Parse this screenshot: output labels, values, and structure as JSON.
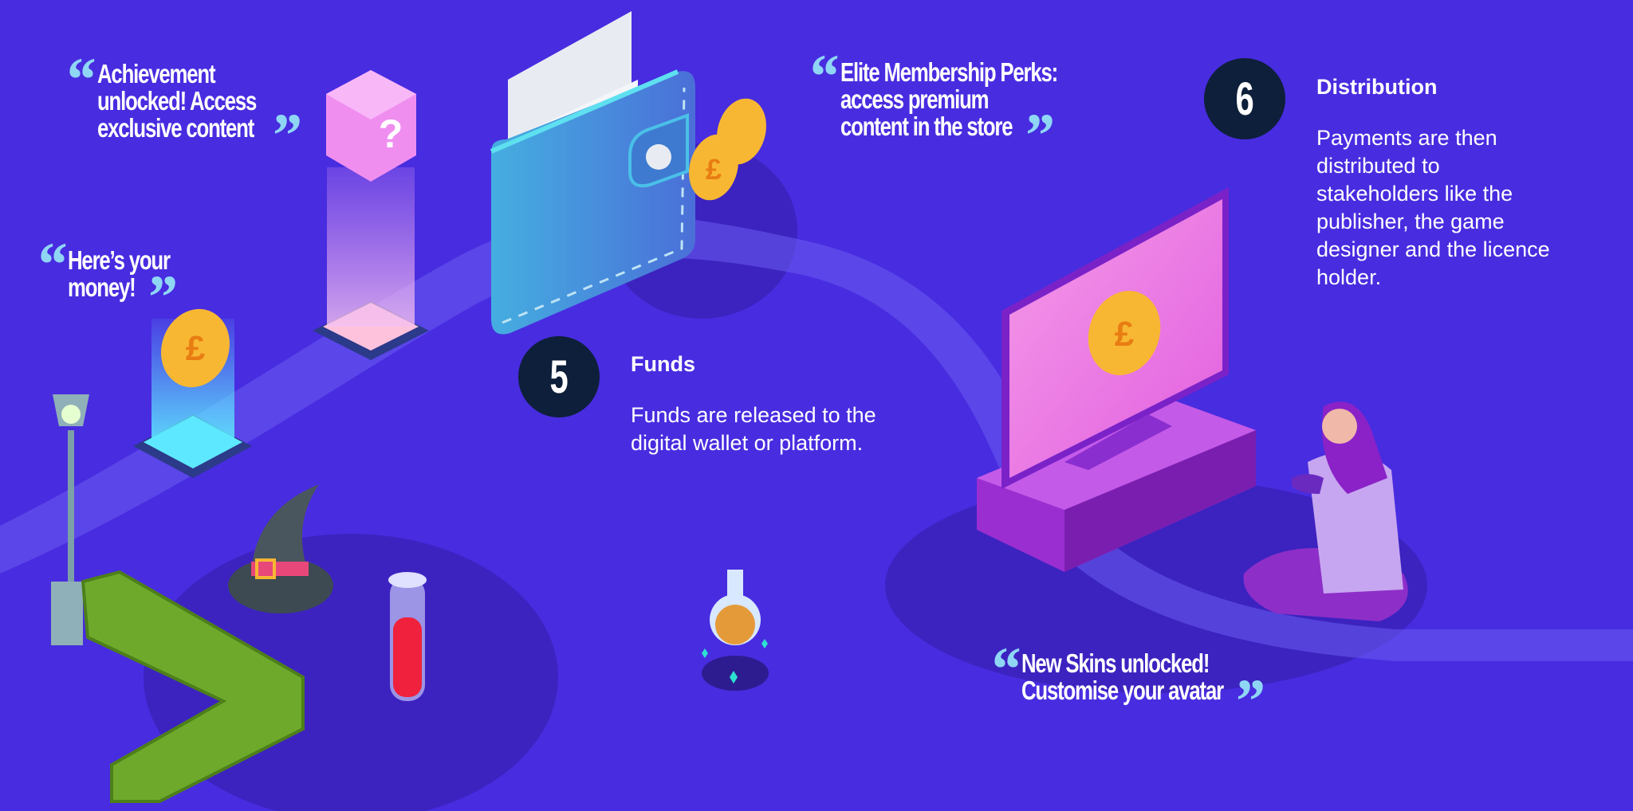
{
  "colors": {
    "background": "#482ce0",
    "step_circle": "#0d1f3a",
    "quote_mark": "#8fd6f5",
    "coin": "#f7b733",
    "tv_screen": "#f07ae8"
  },
  "quotes": [
    {
      "text_lines": [
        "Achievement",
        "unlocked! Access",
        "exclusive content"
      ]
    },
    {
      "text_lines": [
        "Here’s your",
        "money!"
      ]
    },
    {
      "text_lines": [
        "Elite Membership Perks:",
        "access premium",
        "content in the store"
      ]
    },
    {
      "text_lines": [
        "New Skins unlocked!",
        "Customise your avatar"
      ]
    }
  ],
  "steps": [
    {
      "number": "5",
      "title": "Funds",
      "body": "Funds are released to the\ndigital wallet or platform."
    },
    {
      "number": "6",
      "title": "Distribution",
      "body": "Payments are then\ndistributed to\nstakeholders like the\npublisher, the game\ndesigner and the licence\nholder."
    }
  ],
  "icons": [
    "wallet-icon",
    "banknote-icon",
    "pound-coin-icon",
    "mystery-cube-icon",
    "tv-icon",
    "gamer-girl-icon",
    "street-lamp-icon",
    "hedge-icon",
    "witch-hat-icon",
    "test-tube-icon",
    "potion-flask-icon"
  ]
}
